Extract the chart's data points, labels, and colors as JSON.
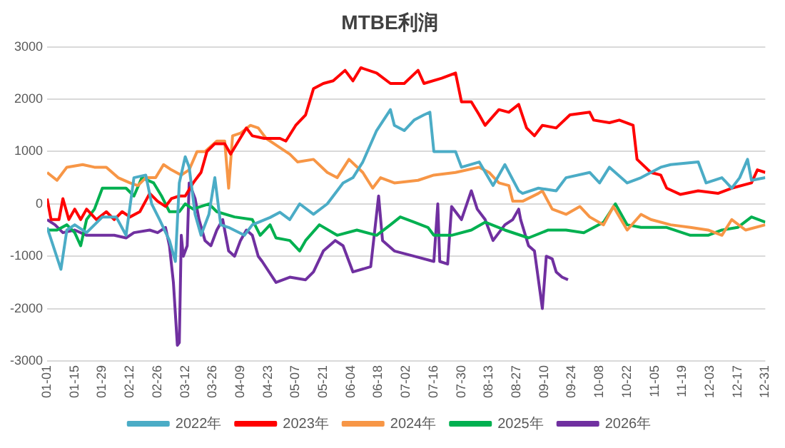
{
  "chart_data": {
    "type": "line",
    "title": "MTBE利润",
    "grid": "y",
    "legend": "bottom",
    "ylim": [
      -3000,
      3000
    ],
    "yticks": [
      -3000,
      -2000,
      -1000,
      0,
      1000,
      2000,
      3000
    ],
    "xlim": [
      "--01-01",
      "--12-31"
    ],
    "xticks": [
      {
        "value": "--01-01",
        "label": "01-01"
      },
      {
        "value": "--01-15",
        "label": "01-15"
      },
      {
        "value": "--01-29",
        "label": "01-29"
      },
      {
        "value": "--02-12",
        "label": "02-12"
      },
      {
        "value": "--02-26",
        "label": "02-26"
      },
      {
        "value": "--03-12",
        "label": "03-12"
      },
      {
        "value": "--03-26",
        "label": "03-26"
      },
      {
        "value": "--04-09",
        "label": "04-09"
      },
      {
        "value": "--04-23",
        "label": "04-23"
      },
      {
        "value": "--05-07",
        "label": "05-07"
      },
      {
        "value": "--05-21",
        "label": "05-21"
      },
      {
        "value": "--06-04",
        "label": "06-04"
      },
      {
        "value": "--06-18",
        "label": "06-18"
      },
      {
        "value": "--07-02",
        "label": "07-02"
      },
      {
        "value": "--07-16",
        "label": "07-16"
      },
      {
        "value": "--07-30",
        "label": "07-30"
      },
      {
        "value": "--08-13",
        "label": "08-13"
      },
      {
        "value": "--08-27",
        "label": "08-27"
      },
      {
        "value": "--09-10",
        "label": "09-10"
      },
      {
        "value": "--09-24",
        "label": "09-24"
      },
      {
        "value": "--10-08",
        "label": "10-08"
      },
      {
        "value": "--10-22",
        "label": "10-22"
      },
      {
        "value": "--11-05",
        "label": "11-05"
      },
      {
        "value": "--11-19",
        "label": "11-19"
      },
      {
        "value": "--12-03",
        "label": "12-03"
      },
      {
        "value": "--12-17",
        "label": "12-17"
      },
      {
        "value": "--12-31",
        "label": "12-31"
      }
    ],
    "series": [
      {
        "name": "2022年",
        "color": "#4bacc6",
        "x": [
          "--01-01",
          "--01-08",
          "--01-11",
          "--01-15",
          "--01-21",
          "--01-29",
          "--02-05",
          "--02-10",
          "--02-14",
          "--02-20",
          "--02-23",
          "--02-27",
          "--03-04",
          "--03-07",
          "--03-09",
          "--03-12",
          "--03-14",
          "--03-17",
          "--03-20",
          "--03-24",
          "--03-27",
          "--03-30",
          "--04-03",
          "--04-11",
          "--04-15",
          "--04-24",
          "--04-29",
          "--05-04",
          "--05-09",
          "--05-16",
          "--05-23",
          "--05-31",
          "--06-05",
          "--06-10",
          "--06-17",
          "--06-24",
          "--06-26",
          "--07-01",
          "--07-06",
          "--07-11",
          "--07-14",
          "--07-16",
          "--07-27",
          "--07-30",
          "--08-08",
          "--08-15",
          "--08-21",
          "--08-28",
          "--08-30",
          "--09-07",
          "--09-16",
          "--09-21",
          "--10-03",
          "--10-08",
          "--10-13",
          "--10-22",
          "--10-29",
          "--11-03",
          "--11-08",
          "--11-13",
          "--11-27",
          "--12-01",
          "--12-09",
          "--12-14",
          "--12-18",
          "--12-22",
          "--12-24",
          "--12-31"
        ],
        "values": [
          -450,
          -1250,
          -500,
          -400,
          -550,
          -250,
          -250,
          -600,
          500,
          550,
          0,
          -300,
          -700,
          -1100,
          400,
          900,
          700,
          -200,
          -600,
          -200,
          500,
          -400,
          -450,
          -600,
          -400,
          -260,
          -160,
          -300,
          0,
          -200,
          0,
          400,
          500,
          800,
          1400,
          1800,
          1500,
          1400,
          1600,
          1700,
          1750,
          1000,
          1000,
          700,
          800,
          350,
          750,
          250,
          200,
          300,
          250,
          500,
          600,
          400,
          700,
          400,
          500,
          600,
          700,
          750,
          800,
          400,
          500,
          300,
          500,
          850,
          450,
          500
        ]
      },
      {
        "name": "2023年",
        "color": "#ff0000",
        "x": [
          "--01-01",
          "--01-03",
          "--01-07",
          "--01-09",
          "--01-12",
          "--01-15",
          "--01-18",
          "--01-21",
          "--01-26",
          "--01-31",
          "--02-04",
          "--02-08",
          "--02-12",
          "--02-17",
          "--02-22",
          "--02-26",
          "--03-02",
          "--03-05",
          "--03-09",
          "--03-12",
          "--03-16",
          "--03-20",
          "--03-23",
          "--03-27",
          "--04-01",
          "--04-04",
          "--04-08",
          "--04-12",
          "--04-15",
          "--04-21",
          "--04-29",
          "--05-02",
          "--05-07",
          "--05-12",
          "--05-16",
          "--05-21",
          "--05-26",
          "--06-01",
          "--06-05",
          "--06-09",
          "--06-17",
          "--06-24",
          "--07-01",
          "--07-08",
          "--07-11",
          "--07-20",
          "--07-27",
          "--07-30",
          "--08-04",
          "--08-08",
          "--08-11",
          "--08-18",
          "--08-23",
          "--08-28",
          "--09-01",
          "--09-05",
          "--09-09",
          "--09-16",
          "--09-23",
          "--10-03",
          "--10-05",
          "--10-13",
          "--10-18",
          "--10-25",
          "--10-27",
          "--11-03",
          "--11-08",
          "--11-11",
          "--11-18",
          "--11-27",
          "--12-07",
          "--12-14",
          "--12-24",
          "--12-27",
          "--12-31"
        ],
        "values": [
          100,
          -300,
          -300,
          100,
          -300,
          -100,
          -300,
          -100,
          -300,
          -150,
          -300,
          -150,
          -250,
          -150,
          200,
          50,
          -50,
          100,
          150,
          150,
          400,
          600,
          1000,
          1150,
          1150,
          950,
          1200,
          1450,
          1300,
          1250,
          1250,
          1200,
          1500,
          1700,
          2200,
          2300,
          2350,
          2550,
          2350,
          2600,
          2500,
          2300,
          2300,
          2550,
          2300,
          2400,
          2500,
          1950,
          1950,
          1700,
          1500,
          1800,
          1750,
          1900,
          1450,
          1300,
          1500,
          1450,
          1700,
          1750,
          1600,
          1550,
          1600,
          1500,
          850,
          600,
          550,
          300,
          180,
          250,
          200,
          300,
          400,
          650,
          600
        ]
      },
      {
        "name": "2024年",
        "color": "#f79646",
        "x": [
          "--01-01",
          "--01-06",
          "--01-11",
          "--01-19",
          "--01-25",
          "--01-31",
          "--02-06",
          "--02-12",
          "--02-16",
          "--02-20",
          "--02-25",
          "--03-01",
          "--03-05",
          "--03-10",
          "--03-14",
          "--03-18",
          "--03-22",
          "--03-28",
          "--04-01",
          "--04-03",
          "--04-05",
          "--04-09",
          "--04-14",
          "--04-18",
          "--04-22",
          "--04-28",
          "--05-04",
          "--05-08",
          "--05-16",
          "--05-23",
          "--05-28",
          "--06-03",
          "--06-10",
          "--06-15",
          "--06-19",
          "--06-26",
          "--07-08",
          "--07-16",
          "--07-27",
          "--08-08",
          "--08-13",
          "--08-18",
          "--08-23",
          "--08-25",
          "--08-30",
          "--09-07",
          "--09-09",
          "--09-14",
          "--09-21",
          "--09-28",
          "--10-03",
          "--10-10",
          "--10-15",
          "--10-22",
          "--10-29",
          "--11-03",
          "--11-13",
          "--11-23",
          "--12-02",
          "--12-09",
          "--12-14",
          "--12-21",
          "--12-31"
        ],
        "values": [
          600,
          450,
          700,
          750,
          700,
          700,
          500,
          400,
          350,
          500,
          500,
          750,
          650,
          550,
          650,
          1000,
          1000,
          1200,
          1200,
          300,
          1300,
          1350,
          1500,
          1450,
          1250,
          1100,
          950,
          800,
          850,
          600,
          500,
          850,
          600,
          300,
          500,
          400,
          450,
          550,
          600,
          700,
          600,
          400,
          350,
          50,
          50,
          200,
          250,
          -100,
          -200,
          -50,
          -250,
          -400,
          -50,
          -500,
          -200,
          -300,
          -400,
          -450,
          -500,
          -600,
          -300,
          -500,
          -400
        ]
      },
      {
        "name": "2025年",
        "color": "#00b050",
        "x": [
          "--01-01",
          "--01-06",
          "--01-11",
          "--01-15",
          "--01-18",
          "--01-21",
          "--01-25",
          "--01-29",
          "--02-10",
          "--02-14",
          "--02-18",
          "--02-24",
          "--02-28",
          "--03-04",
          "--03-09",
          "--03-12",
          "--03-16",
          "--03-20",
          "--03-24",
          "--03-28",
          "--04-06",
          "--04-15",
          "--04-19",
          "--04-24",
          "--04-27",
          "--05-04",
          "--05-09",
          "--05-12",
          "--05-19",
          "--05-28",
          "--06-07",
          "--06-17",
          "--06-24",
          "--06-29",
          "--07-06",
          "--07-13",
          "--07-16",
          "--07-25",
          "--08-04",
          "--08-11",
          "--08-21",
          "--09-02",
          "--09-12",
          "--09-21",
          "--09-30",
          "--10-10",
          "--10-16",
          "--10-22",
          "--10-29",
          "--11-11",
          "--11-23",
          "--12-02",
          "--12-09",
          "--12-17",
          "--12-24",
          "--12-31"
        ],
        "values": [
          -500,
          -500,
          -400,
          -550,
          -800,
          -300,
          -100,
          300,
          300,
          150,
          500,
          400,
          150,
          -150,
          -150,
          0,
          -100,
          -50,
          0,
          -150,
          -250,
          -300,
          -600,
          -400,
          -650,
          -700,
          -900,
          -700,
          -400,
          -600,
          -500,
          -600,
          -400,
          -250,
          -350,
          -450,
          -600,
          -600,
          -500,
          -350,
          -500,
          -650,
          -500,
          -500,
          -550,
          -350,
          0,
          -400,
          -450,
          -450,
          -600,
          -600,
          -500,
          -450,
          -250,
          -350
        ]
      },
      {
        "name": "2026年",
        "color": "#7030a0",
        "x": [
          "--01-01",
          "--01-05",
          "--01-09",
          "--01-15",
          "--01-21",
          "--02-04",
          "--02-10",
          "--02-14",
          "--02-22",
          "--02-26",
          "--03-02",
          "--03-04",
          "--03-06",
          "--03-08",
          "--03-09",
          "--03-10",
          "--03-11",
          "--03-13",
          "--03-14",
          "--03-17",
          "--03-19",
          "--03-22",
          "--03-25",
          "--03-28",
          "--03-31",
          "--04-03",
          "--04-06",
          "--04-09",
          "--04-12",
          "--04-15",
          "--04-18",
          "--04-20",
          "--04-27",
          "--05-04",
          "--05-12",
          "--05-16",
          "--05-21",
          "--05-27",
          "--05-31",
          "--06-05",
          "--06-14",
          "--06-18",
          "--06-20",
          "--06-26",
          "--07-06",
          "--07-16",
          "--07-18",
          "--07-19",
          "--07-23",
          "--07-25",
          "--07-30",
          "--08-04",
          "--08-07",
          "--08-11",
          "--08-15",
          "--08-21",
          "--08-25",
          "--08-28",
          "--08-29",
          "--09-02",
          "--09-05",
          "--09-09",
          "--09-11",
          "--09-14",
          "--09-16",
          "--09-19",
          "--09-22"
        ],
        "values": [
          -300,
          -400,
          -550,
          -500,
          -600,
          -600,
          -650,
          -550,
          -500,
          -550,
          -450,
          -800,
          -1500,
          -2700,
          -2650,
          -600,
          -1000,
          -800,
          400,
          100,
          -300,
          -700,
          -800,
          -500,
          -300,
          -900,
          -1000,
          -700,
          -500,
          -600,
          -1000,
          -1100,
          -1500,
          -1400,
          -1450,
          -1300,
          -900,
          -700,
          -800,
          -1300,
          -1200,
          150,
          -700,
          -900,
          -1000,
          -1100,
          0,
          -1100,
          -1150,
          -50,
          -300,
          250,
          -100,
          -300,
          -700,
          -400,
          -300,
          -100,
          -300,
          -800,
          -900,
          -2000,
          -1000,
          -1050,
          -1300,
          -1400,
          -1450
        ]
      }
    ]
  }
}
